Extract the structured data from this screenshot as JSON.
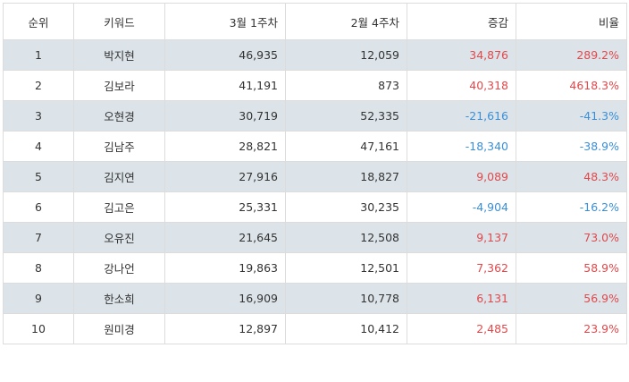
{
  "table": {
    "headers": [
      "순위",
      "키워드",
      "3월 1주차",
      "2월 4주차",
      "증감",
      "비율"
    ],
    "rows": [
      {
        "rank": "1",
        "keyword": "박지현",
        "cur": "46,935",
        "prev": "12,059",
        "diff": "34,876",
        "ratio": "289.2%",
        "trend": "up"
      },
      {
        "rank": "2",
        "keyword": "김보라",
        "cur": "41,191",
        "prev": "873",
        "diff": "40,318",
        "ratio": "4618.3%",
        "trend": "up"
      },
      {
        "rank": "3",
        "keyword": "오현경",
        "cur": "30,719",
        "prev": "52,335",
        "diff": "-21,616",
        "ratio": "-41.3%",
        "trend": "down"
      },
      {
        "rank": "4",
        "keyword": "김남주",
        "cur": "28,821",
        "prev": "47,161",
        "diff": "-18,340",
        "ratio": "-38.9%",
        "trend": "down"
      },
      {
        "rank": "5",
        "keyword": "김지연",
        "cur": "27,916",
        "prev": "18,827",
        "diff": "9,089",
        "ratio": "48.3%",
        "trend": "up"
      },
      {
        "rank": "6",
        "keyword": "김고은",
        "cur": "25,331",
        "prev": "30,235",
        "diff": "-4,904",
        "ratio": "-16.2%",
        "trend": "down"
      },
      {
        "rank": "7",
        "keyword": "오유진",
        "cur": "21,645",
        "prev": "12,508",
        "diff": "9,137",
        "ratio": "73.0%",
        "trend": "up"
      },
      {
        "rank": "8",
        "keyword": "강나언",
        "cur": "19,863",
        "prev": "12,501",
        "diff": "7,362",
        "ratio": "58.9%",
        "trend": "up"
      },
      {
        "rank": "9",
        "keyword": "한소희",
        "cur": "16,909",
        "prev": "10,778",
        "diff": "6,131",
        "ratio": "56.9%",
        "trend": "up"
      },
      {
        "rank": "10",
        "keyword": "원미경",
        "cur": "12,897",
        "prev": "10,412",
        "diff": "2,485",
        "ratio": "23.9%",
        "trend": "up"
      }
    ]
  },
  "colors": {
    "stripe": "#dce4ea",
    "border": "#dcdcdc",
    "positive": "#e0494c",
    "negative": "#3b8fd6"
  }
}
